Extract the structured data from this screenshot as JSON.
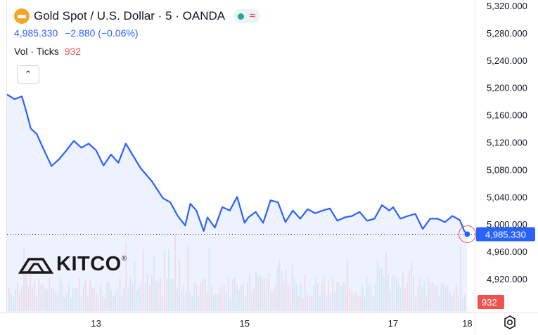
{
  "header": {
    "title": "Gold Spot / U.S. Dollar · 5 · OANDA",
    "last_price": "4,985.330",
    "change": "−2.880 (−0.06%)",
    "volume_label": "Vol · Ticks",
    "volume_value": "932",
    "collapse_symbol": "⌃"
  },
  "watermark": {
    "text": "KITCO",
    "reg": "®"
  },
  "colors": {
    "line": "#2962ff",
    "area_fill": "#e8eeff",
    "vol_up": "#26a69a",
    "vol_down": "#ef5350",
    "price_tag": "#2962ff",
    "vol_tag": "#ef5350"
  },
  "chart_data": {
    "type": "area",
    "y_ticks": [
      "5,320.000",
      "5,280.000",
      "5,240.000",
      "5,200.000",
      "5,160.000",
      "5,120.000",
      "5,080.000",
      "5,040.000",
      "5,000.000",
      "4,960.000",
      "4,920.000"
    ],
    "ylim": [
      4900,
      5330
    ],
    "x_ticks": [
      "13",
      "15",
      "17",
      "18"
    ],
    "x_tick_positions": [
      13,
      15,
      17,
      18
    ],
    "xlim": [
      11.8,
      18.1
    ],
    "price_label": "4,985.330",
    "volume_label": "932",
    "current_price": 4985.33,
    "series": [
      {
        "x": [
          11.8,
          11.9,
          12.0,
          12.06,
          12.12,
          12.2,
          12.3,
          12.4,
          12.5,
          12.6,
          12.7,
          12.8,
          12.9,
          13.0,
          13.1,
          13.2,
          13.3,
          13.4,
          13.5,
          13.6,
          13.75,
          13.9,
          14.0,
          14.05,
          14.1,
          14.2,
          14.27,
          14.35,
          14.45,
          14.5,
          14.6,
          14.7,
          14.8,
          14.9,
          15.0,
          15.05,
          15.15,
          15.25,
          15.35,
          15.45,
          15.55,
          15.65,
          15.75,
          15.85,
          15.95,
          16.05,
          16.15,
          16.25,
          16.35,
          16.45,
          16.55,
          16.65,
          16.75,
          16.85,
          16.95,
          17.0,
          17.1,
          17.2,
          17.3,
          17.4,
          17.5,
          17.6,
          17.7,
          17.8,
          17.9,
          17.96,
          18.0
        ],
        "y": [
          5190,
          5183,
          5187,
          5165,
          5140,
          5132,
          5108,
          5085,
          5095,
          5108,
          5122,
          5112,
          5118,
          5108,
          5086,
          5102,
          5090,
          5118,
          5100,
          5082,
          5063,
          5038,
          5032,
          5022,
          5012,
          4998,
          5030,
          5020,
          4990,
          5010,
          4995,
          5025,
          5020,
          5040,
          5002,
          5010,
          5018,
          5002,
          5035,
          5032,
          5003,
          5020,
          5008,
          5022,
          5016,
          5020,
          5023,
          5005,
          5010,
          5012,
          5018,
          5005,
          5008,
          5028,
          5020,
          5025,
          5008,
          5012,
          5015,
          4993,
          5008,
          5008,
          5003,
          5012,
          5006,
          4990,
          4985.33
        ]
      }
    ],
    "volume": {
      "ylim": [
        0,
        200
      ],
      "x": [
        11.8,
        18.1
      ]
    },
    "grid": false
  }
}
